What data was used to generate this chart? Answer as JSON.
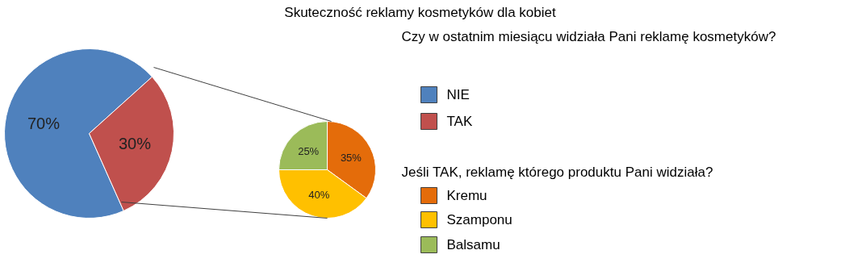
{
  "chart_data": [
    {
      "type": "pie",
      "title": "Skuteczność reklamy kosmetyków dla kobiet",
      "legend_title": "Czy w ostatnim miesiącu widziała Pani reklamę kosmetyków?",
      "categories": [
        "NIE",
        "TAK"
      ],
      "values": [
        70,
        30
      ],
      "value_labels": [
        "70%",
        "30%"
      ],
      "colors": [
        "#4f81bd",
        "#c0504d"
      ],
      "legend": "right"
    },
    {
      "type": "pie",
      "legend_title": "Jeśli TAK, reklamę którego produktu Pani widziała?",
      "categories": [
        "Kremu",
        "Szamponu",
        "Balsamu"
      ],
      "values": [
        35,
        40,
        25
      ],
      "value_labels": [
        "35%",
        "40%",
        "25%"
      ],
      "colors": [
        "#e46c0a",
        "#ffc000",
        "#9bbb59"
      ],
      "legend": "right"
    }
  ]
}
